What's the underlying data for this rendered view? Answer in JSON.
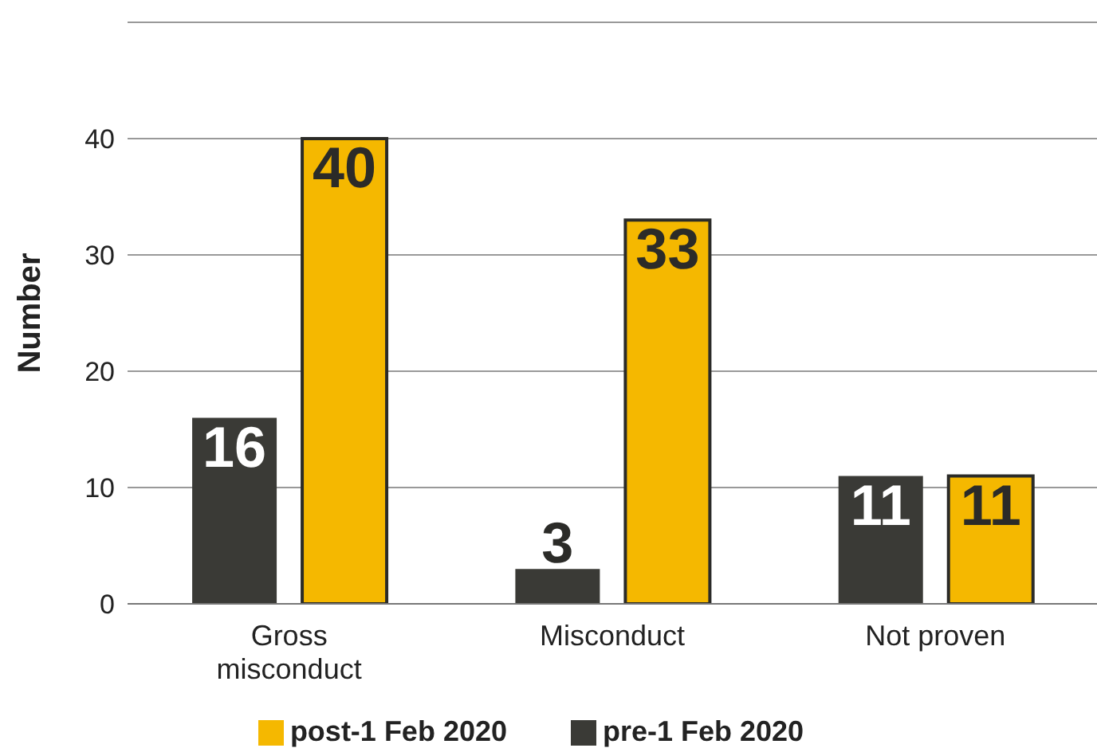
{
  "chart_data": {
    "type": "bar",
    "ylabel": "Number",
    "categories": [
      "Gross misconduct",
      "Misconduct",
      "Not proven"
    ],
    "series": [
      {
        "name": "pre-1 Feb 2020",
        "color": "#3a3a36",
        "values": [
          16,
          3,
          11
        ]
      },
      {
        "name": "post-1 Feb 2020",
        "color": "#f5b800",
        "values": [
          40,
          33,
          11
        ]
      }
    ],
    "ylim": [
      0,
      50
    ],
    "yticks": [
      0,
      10,
      20,
      30,
      40,
      {
        "value": 50,
        "label": null
      }
    ],
    "grid": "y",
    "legend": "bottom",
    "data_labels": true
  }
}
